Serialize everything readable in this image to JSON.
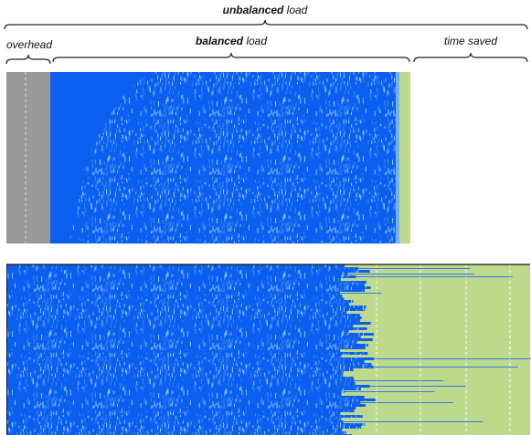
{
  "labels": {
    "unbalanced": {
      "emphasis": "unbalanced",
      "rest": "load"
    },
    "overhead": "overhead",
    "balanced": {
      "emphasis": "balanced",
      "rest": "load"
    },
    "time_saved": "time saved"
  }
}
